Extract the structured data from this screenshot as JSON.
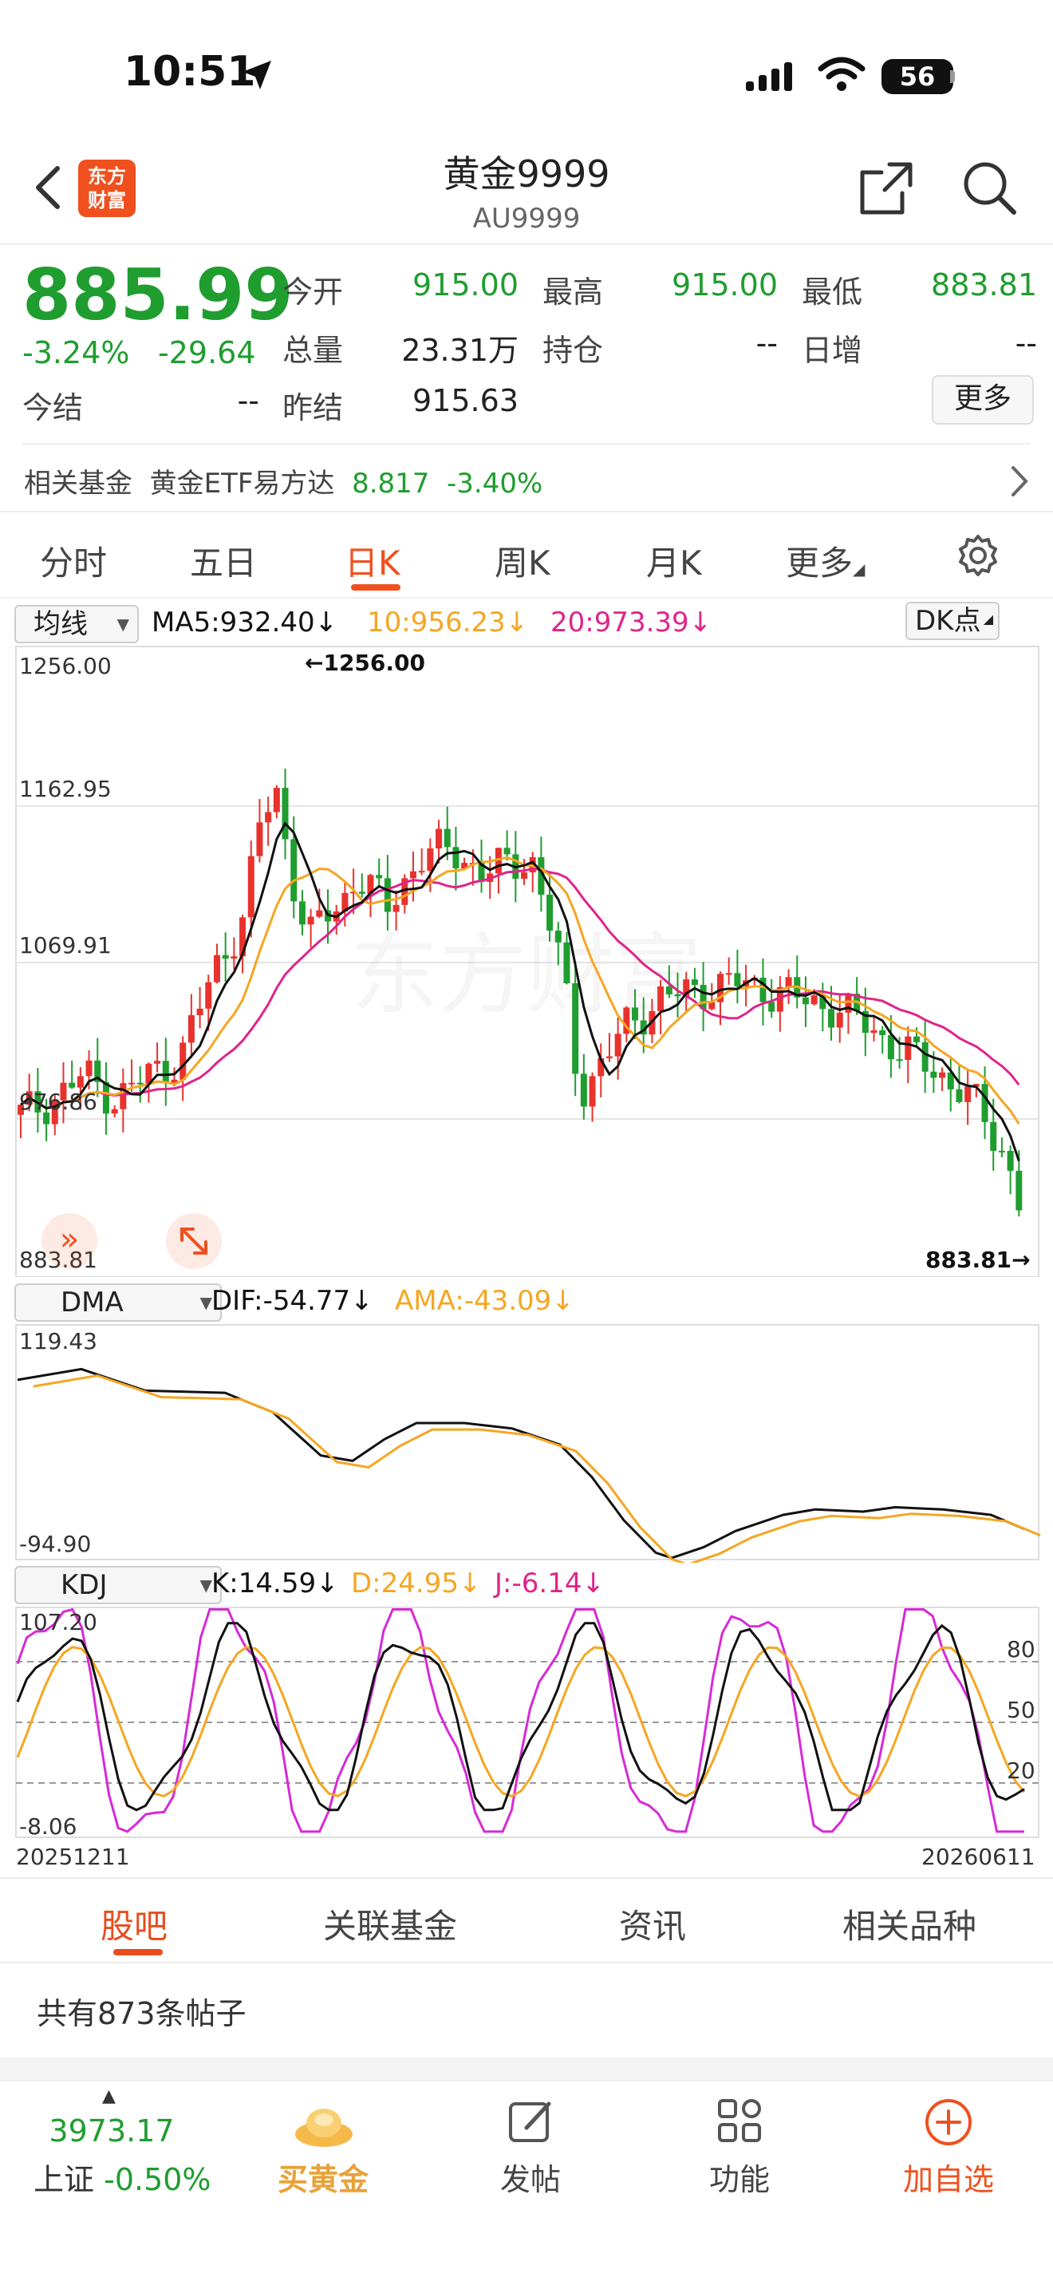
{
  "status_bar": {
    "time": "10:51",
    "battery": "56"
  },
  "header": {
    "logo_line1": "东方",
    "logo_line2": "财富",
    "title": "黄金9999",
    "subtitle": "AU9999"
  },
  "quote": {
    "price": "885.99",
    "change_pct": "-3.24%",
    "change_abs": "-29.64",
    "open_label": "今开",
    "open": "915.00",
    "high_label": "最高",
    "high": "915.00",
    "low_label": "最低",
    "low": "883.81",
    "volume_label": "总量",
    "volume": "23.31万",
    "position_label": "持仓",
    "position": "--",
    "daily_inc_label": "日增",
    "daily_inc": "--",
    "settle_label": "今结",
    "settle": "--",
    "prev_settle_label": "昨结",
    "prev_settle": "915.63",
    "more_button": "更多"
  },
  "related_fund": {
    "label": "相关基金",
    "name": "黄金ETF易方达",
    "value": "8.817",
    "change": "-3.40%"
  },
  "chart_tabs": [
    "分时",
    "五日",
    "日K",
    "周K",
    "月K",
    "更多"
  ],
  "active_chart_tab": "日K",
  "ma_panel": {
    "selector": "均线",
    "ma5": "MA5:932.40",
    "ma10": "10:956.23",
    "ma20": "20:973.39",
    "dk_button": "DK点",
    "y_labels": [
      "1256.00",
      "1162.95",
      "1069.91",
      "976.86",
      "883.81"
    ],
    "max_label": "1256.00",
    "min_label": "883.81",
    "watermark": "东方财富"
  },
  "dma_panel": {
    "selector": "DMA",
    "dif": "DIF:-54.77",
    "ama": "AMA:-43.09",
    "y_top": "119.43",
    "y_bottom": "-94.90"
  },
  "kdj_panel": {
    "selector": "KDJ",
    "k": "K:14.59",
    "d": "D:24.95",
    "j": "J:-6.14",
    "y_top": "107.20",
    "y_bottom": "-8.06",
    "levels": [
      "80",
      "50",
      "20"
    ],
    "date_start": "20251211",
    "date_end": "20260611"
  },
  "colors": {
    "up": "#e8322d",
    "down": "#1f9d2f",
    "ma5": "#111111",
    "ma10": "#f5a623",
    "ma20": "#e0248a",
    "accent": "#f0501e"
  },
  "bottom_tabs": [
    "股吧",
    "关联基金",
    "资讯",
    "相关品种"
  ],
  "active_bottom_tab": "股吧",
  "posts_count": "共有873条帖子",
  "bottom_nav": {
    "index_value": "3973.17",
    "index_name": "上证",
    "index_change": "-0.50%",
    "buy_gold": "买黄金",
    "post": "发帖",
    "functions": "功能",
    "add_watch": "加自选"
  }
}
